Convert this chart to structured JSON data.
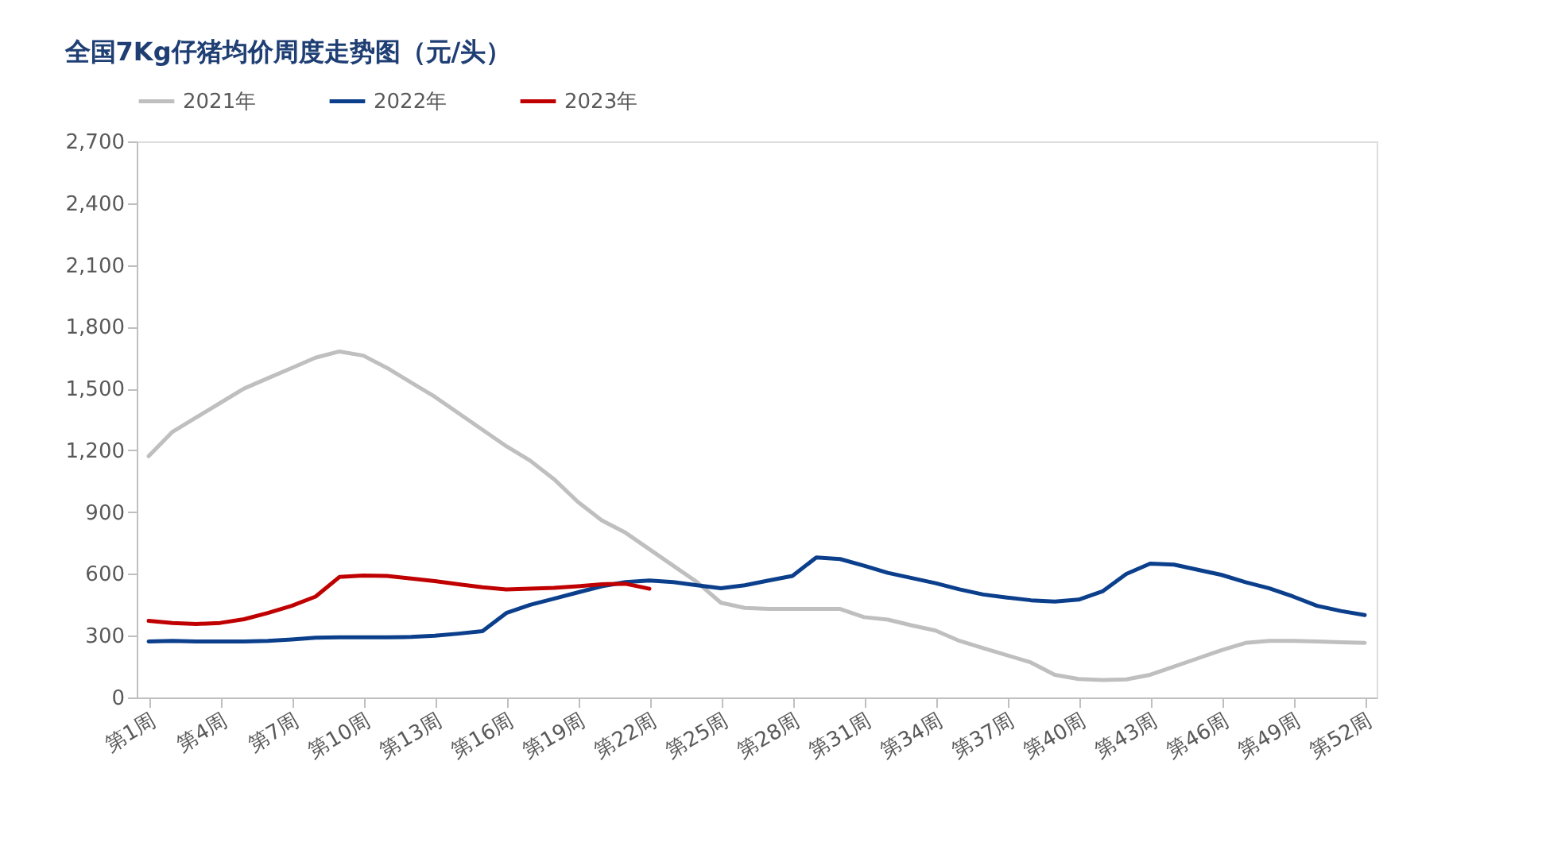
{
  "chart_data": {
    "type": "line",
    "title": "全国7Kg仔猪均价周度走势图（元/头）",
    "categories": [
      "第1周",
      null,
      null,
      "第4周",
      null,
      null,
      "第7周",
      null,
      null,
      "第10周",
      null,
      null,
      "第13周",
      null,
      null,
      "第16周",
      null,
      null,
      "第19周",
      null,
      null,
      "第22周",
      null,
      null,
      "第25周",
      null,
      null,
      "第28周",
      null,
      null,
      "第31周",
      null,
      null,
      "第34周",
      null,
      null,
      "第37周",
      null,
      null,
      "第40周",
      null,
      null,
      "第43周",
      null,
      null,
      "第46周",
      null,
      null,
      "第49周",
      null,
      null,
      "第52周"
    ],
    "series": [
      {
        "name": "2021年",
        "color": "#bfbfbf",
        "values": [
          1172,
          1290,
          1360,
          1430,
          1500,
          1550,
          1600,
          1650,
          1680,
          1660,
          1600,
          1530,
          1460,
          1380,
          1300,
          1220,
          1150,
          1060,
          950,
          860,
          800,
          720,
          640,
          560,
          460,
          435,
          430,
          430,
          430,
          430,
          390,
          378,
          350,
          325,
          275,
          240,
          205,
          170,
          110,
          90,
          85,
          88,
          110,
          150,
          190,
          230,
          265,
          275,
          275,
          272,
          268,
          265
        ]
      },
      {
        "name": "2022年",
        "color": "#0b3f8c",
        "values": [
          272,
          275,
          272,
          272,
          272,
          275,
          282,
          290,
          292,
          292,
          292,
          294,
          300,
          310,
          322,
          410,
          450,
          480,
          510,
          540,
          560,
          568,
          560,
          545,
          530,
          545,
          568,
          590,
          680,
          672,
          640,
          605,
          580,
          555,
          525,
          500,
          485,
          472,
          466,
          475,
          515,
          600,
          650,
          645,
          620,
          595,
          560,
          530,
          490,
          445,
          420,
          400
        ]
      },
      {
        "name": "2023年",
        "color": "#c00000",
        "values": [
          372,
          362,
          357,
          362,
          380,
          410,
          445,
          490,
          585,
          592,
          590,
          578,
          565,
          550,
          535,
          525,
          528,
          532,
          540,
          550,
          552,
          528,
          null,
          null,
          null,
          null,
          null,
          null,
          null,
          null,
          null,
          null,
          null,
          null,
          null,
          null,
          null,
          null,
          null,
          null,
          null,
          null,
          null,
          null,
          null,
          null,
          null,
          null,
          null,
          null,
          null,
          null
        ]
      }
    ],
    "ylim": [
      0,
      2700
    ],
    "yticks": [
      0,
      300,
      600,
      900,
      {
        "value": 1200,
        "label": "1,200"
      },
      {
        "value": 1500,
        "label": "1,500"
      },
      {
        "value": 1800,
        "label": "1,800"
      },
      {
        "value": 2100,
        "label": "2,100"
      },
      {
        "value": 2400,
        "label": "2,400"
      },
      {
        "value": 2700,
        "label": "2,700"
      }
    ],
    "legend": "top",
    "line_style": "solid",
    "marker": "none"
  }
}
